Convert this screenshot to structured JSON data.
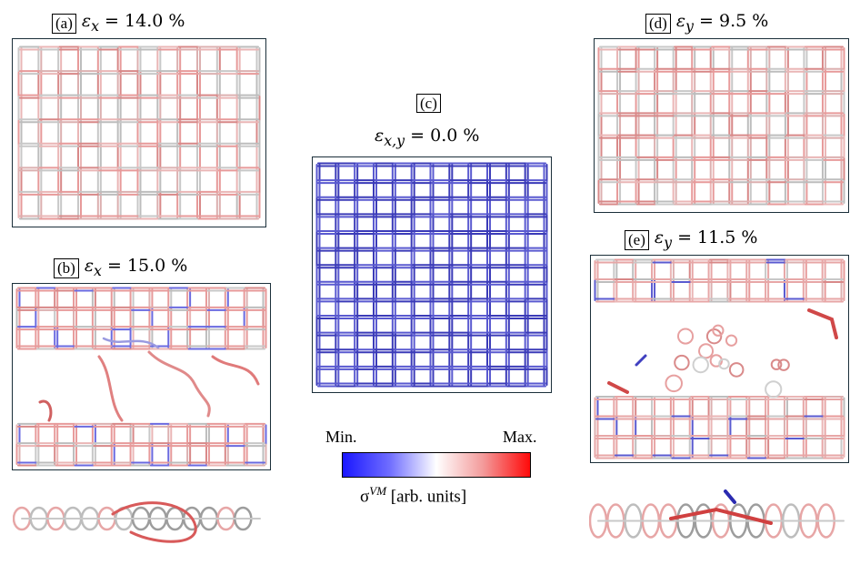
{
  "panels": {
    "a": {
      "tag": "(a)",
      "var": "ε",
      "sub": "x",
      "rhs": " = 14.0 %"
    },
    "b": {
      "tag": "(b)",
      "var": "ε",
      "sub": "x",
      "rhs": " = 15.0 %"
    },
    "c": {
      "tag": "(c)",
      "var": "ε",
      "sub": "x,y",
      "rhs": " = 0.0 %"
    },
    "d": {
      "tag": "(d)",
      "var": "ε",
      "sub": "y",
      "rhs": " = 9.5 %"
    },
    "e": {
      "tag": "(e)",
      "var": "ε",
      "sub": "y",
      "rhs": " = 11.5 %"
    }
  },
  "colorbar": {
    "min_label": "Min.",
    "max_label": "Max.",
    "quantity": "σ",
    "quantity_sup": "VM",
    "units": " [arb. units]",
    "colors": [
      "#1a17ff",
      "#ffffff",
      "#ff0a0a"
    ]
  }
}
